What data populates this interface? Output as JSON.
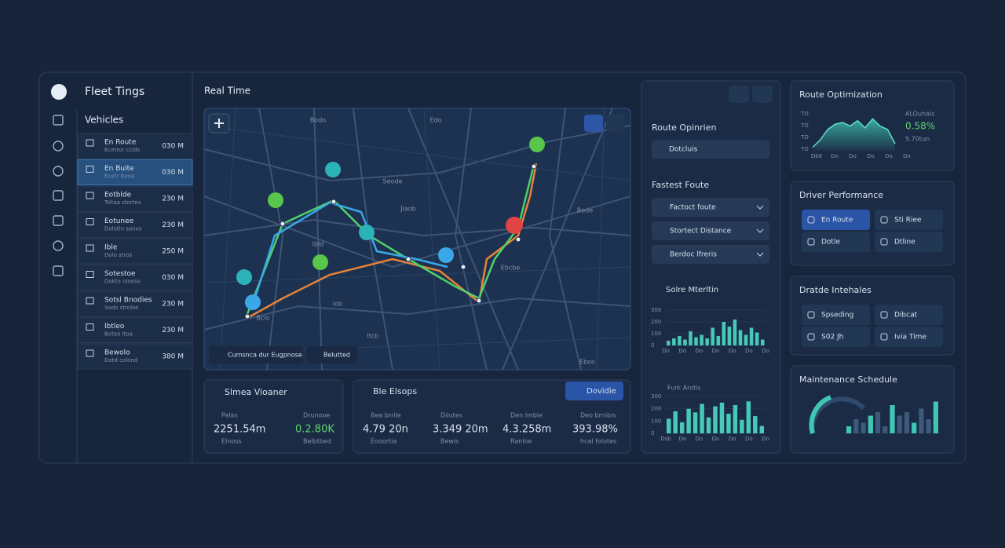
{
  "app": {
    "title": "Fleet Tings",
    "section": "Vehicles"
  },
  "vehicles": [
    {
      "name": "En Route",
      "detail": "Ecetror ccids",
      "value": "030 M"
    },
    {
      "name": "En Buite",
      "detail": "Ecetr ltooa",
      "value": "030 M"
    },
    {
      "name": "Eotblde",
      "detail": "Tsltaa stortes",
      "value": "230 M"
    },
    {
      "name": "Eotunee",
      "detail": "Dolotin sones",
      "value": "230 M"
    },
    {
      "name": "Ible",
      "detail": "Dolo stros",
      "value": "250 M"
    },
    {
      "name": "Sotestoe",
      "detail": "Dokto nloose",
      "value": "030 M"
    },
    {
      "name": "Sotsl Bnodies",
      "detail": "Sodo stroloe",
      "value": "230 M"
    },
    {
      "name": "Ibtleo",
      "detail": "Boteo ltoa",
      "value": "230 M"
    },
    {
      "name": "Bewolo",
      "detail": "Dotd colond",
      "value": "380 M"
    }
  ],
  "map": {
    "title": "Real Time",
    "labels": [
      "Bodo",
      "Seode",
      "Jlaob",
      "Ibld",
      "Edo",
      "Ido",
      "Bode",
      "Ebcbe",
      "Itcb",
      "Eboo",
      "Bclo"
    ],
    "chips": [
      "Cumsnca dur Eugpnose",
      "Belutted"
    ]
  },
  "summary": {
    "title": "Slmea Vioaner",
    "stats": [
      {
        "label": "Pelas",
        "value": "2251.54m",
        "foot": "Elnoss"
      },
      {
        "label": "Drunooe",
        "value": "0.2.80K",
        "foot": "Belbtbed"
      }
    ]
  },
  "fleet": {
    "title": "Ble Elsops",
    "button": "Dovidie",
    "stats": [
      {
        "label": "Bea brrile",
        "value": "4.79 20n",
        "foot": "Eooortia"
      },
      {
        "label": "Diiutes",
        "value": "3.349 20m",
        "foot": "Bewis"
      },
      {
        "label": "Den lmble",
        "value": "4.3.258m",
        "foot": "Ranloe"
      },
      {
        "label": "Deo brnibis",
        "value": "393.98%",
        "foot": "hcal folotes"
      }
    ]
  },
  "route": {
    "title": "Route Opinrien",
    "search": "Dotcluis",
    "subtitle": "Fastest Foute",
    "options": [
      "Factoct foute",
      "Stortect Distance",
      "Berdoc lfreris"
    ]
  },
  "charts": [
    {
      "type": "bar",
      "title": "Solre Mterltin",
      "values": [
        40,
        60,
        80,
        50,
        120,
        70,
        90,
        60,
        150,
        80,
        200,
        160,
        220,
        130,
        90,
        150,
        110,
        50
      ],
      "ylim": [
        0,
        300
      ],
      "yticks": [
        0,
        100,
        200,
        300
      ],
      "xlabels": [
        "Do",
        "Do",
        "Do",
        "Do",
        "Do",
        "Do",
        "Do"
      ]
    },
    {
      "type": "bar",
      "title": "Furk Arotis",
      "values": [
        120,
        180,
        90,
        200,
        170,
        240,
        130,
        220,
        250,
        160,
        230,
        110,
        260,
        140,
        60
      ],
      "ylim": [
        0,
        300
      ],
      "yticks": [
        0,
        100,
        200,
        300
      ],
      "xlabels": [
        "Dsb",
        "Do",
        "Do",
        "Do",
        "Do",
        "Do",
        "Do"
      ]
    }
  ],
  "optimization": {
    "title": "Route Optimization",
    "axis_labels": [
      "TO",
      "TO",
      "TO",
      "TO"
    ],
    "xlabels": [
      "Db8",
      "Do",
      "Do",
      "Do",
      "Do",
      "Do"
    ],
    "legend": [
      "ALOuhals",
      "0.58%",
      "S.70tun"
    ],
    "values": [
      10,
      30,
      60,
      75,
      80,
      70,
      85,
      65,
      90,
      70,
      60,
      20
    ],
    "ylim": [
      0,
      100
    ]
  },
  "driver": {
    "title": "Driver Performance",
    "items": [
      "En Route",
      "Sti Riee",
      "Dotle",
      "Dtline"
    ]
  },
  "incidents": {
    "title": "Dratde Intehales",
    "items": [
      "Spseding",
      "Dibcat",
      "S02 Jh",
      "Ivia Time"
    ]
  },
  "maintenance": {
    "title": "Maintenance Schedule",
    "values": [
      20,
      40,
      30,
      50,
      60,
      20,
      80,
      50,
      60,
      30,
      70,
      40,
      90
    ],
    "ylim": [
      0,
      100
    ]
  }
}
